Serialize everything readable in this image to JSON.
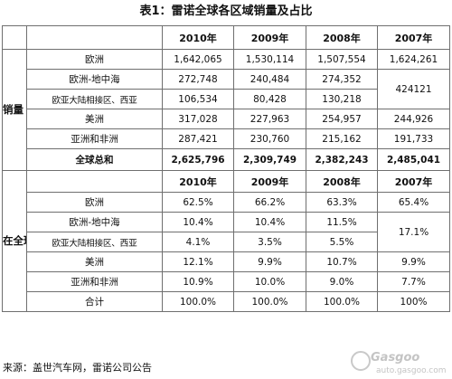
{
  "title": "表1：雷诺全球各区域销量及占比",
  "sections": {
    "sales_label": "销量（辆）",
    "share_label": "在全球销量中占比"
  },
  "years": [
    "2010年",
    "2009年",
    "2008年",
    "2007年"
  ],
  "sales": {
    "rows": [
      {
        "region": "欧洲",
        "v2010": "1,642,065",
        "v2009": "1,530,114",
        "v2008": "1,507,554",
        "v2007": "1,624,261"
      },
      {
        "region": "欧洲-地中海",
        "v2010": "272,748",
        "v2009": "240,484",
        "v2008": "274,352"
      },
      {
        "region": "欧亚大陆相接区、西亚",
        "v2010": "106,534",
        "v2009": "80,428",
        "v2008": "130,218"
      },
      {
        "region": "美洲",
        "v2010": "317,028",
        "v2009": "227,963",
        "v2008": "254,957",
        "v2007": "244,926"
      },
      {
        "region": "亚洲和非洲",
        "v2010": "287,421",
        "v2009": "230,760",
        "v2008": "215,162",
        "v2007": "191,733"
      }
    ],
    "merged_2007": "424121",
    "total": {
      "label": "全球总和",
      "v2010": "2,625,796",
      "v2009": "2,309,749",
      "v2008": "2,382,243",
      "v2007": "2,485,041"
    }
  },
  "share": {
    "rows": [
      {
        "region": "欧洲",
        "v2010": "62.5%",
        "v2009": "66.2%",
        "v2008": "63.3%",
        "v2007": "65.4%"
      },
      {
        "region": "欧洲-地中海",
        "v2010": "10.4%",
        "v2009": "10.4%",
        "v2008": "11.5%"
      },
      {
        "region": "欧亚大陆相接区、西亚",
        "v2010": "4.1%",
        "v2009": "3.5%",
        "v2008": "5.5%"
      },
      {
        "region": "美洲",
        "v2010": "12.1%",
        "v2009": "9.9%",
        "v2008": "10.7%",
        "v2007": "9.9%"
      },
      {
        "region": "亚洲和非洲",
        "v2010": "10.9%",
        "v2009": "10.0%",
        "v2008": "9.0%",
        "v2007": "7.7%"
      }
    ],
    "merged_2007": "17.1%",
    "total": {
      "label": "合计",
      "v2010": "100.0%",
      "v2009": "100.0%",
      "v2008": "100.0%",
      "v2007": "100%"
    }
  },
  "source": "来源：盖世汽车网，雷诺公司公告",
  "watermark": {
    "brand": "Gasgoo",
    "url": "auto.gasgoo.com"
  }
}
